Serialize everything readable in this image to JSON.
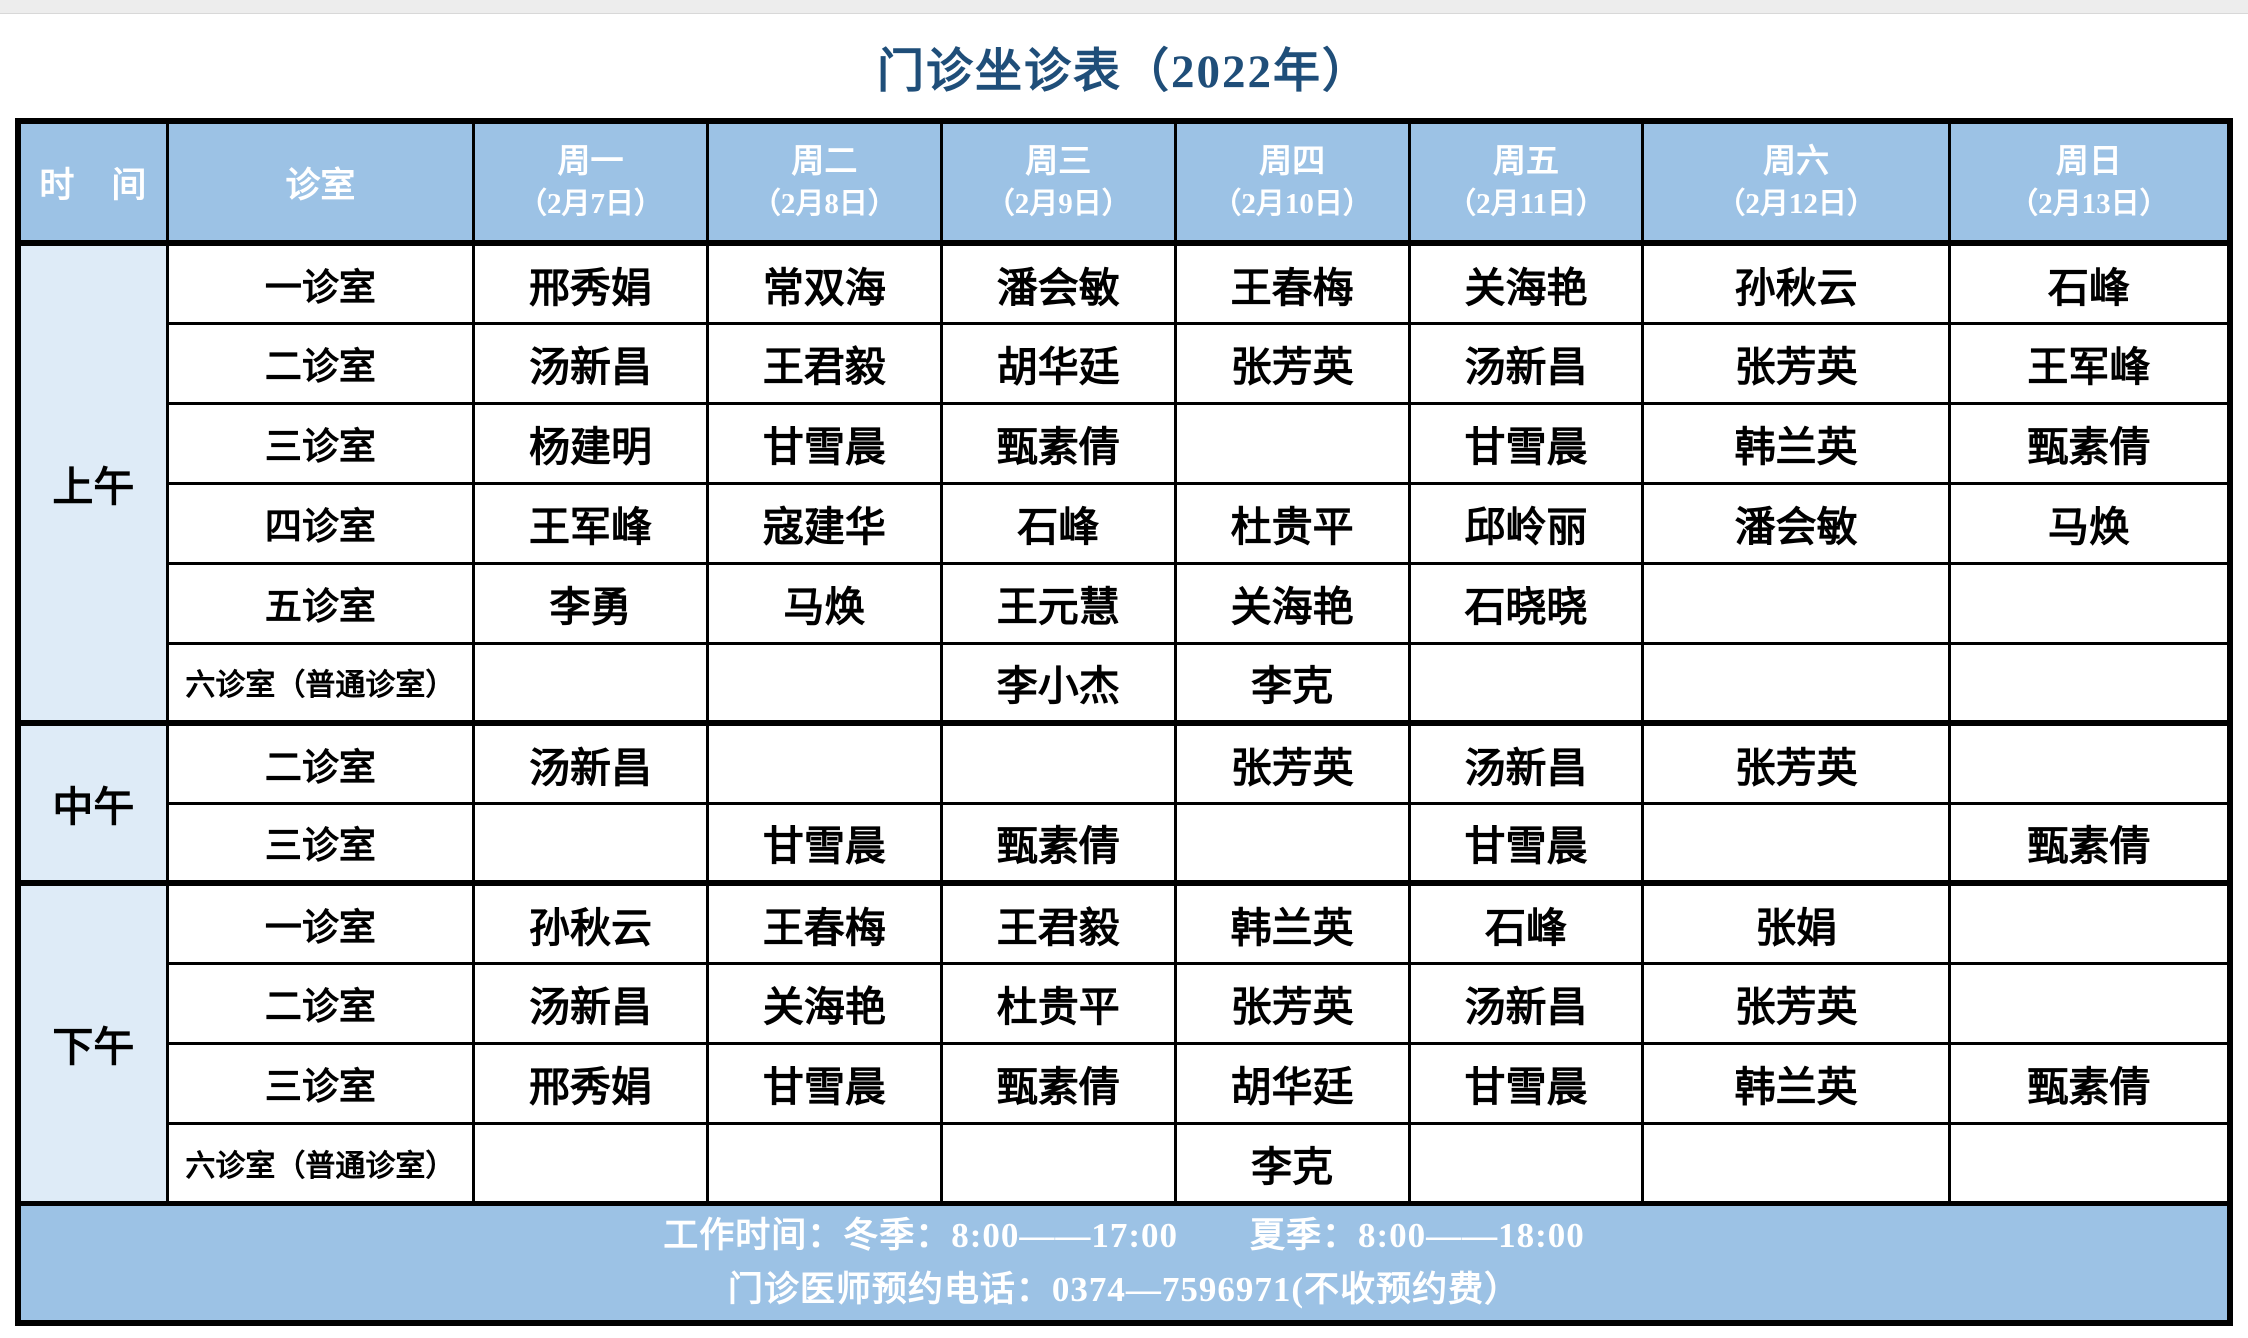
{
  "title": "门诊坐诊表（2022年）",
  "header": {
    "time": "时　间",
    "room": "诊室",
    "days": [
      {
        "day": "周一",
        "date": "（2月7日）"
      },
      {
        "day": "周二",
        "date": "（2月8日）"
      },
      {
        "day": "周三",
        "date": "（2月9日）"
      },
      {
        "day": "周四",
        "date": "（2月10日）"
      },
      {
        "day": "周五",
        "date": "（2月11日）"
      },
      {
        "day": "周六",
        "date": "（2月12日）"
      },
      {
        "day": "周日",
        "date": "（2月13日）"
      }
    ]
  },
  "sections": [
    {
      "label": "上午",
      "rows": [
        {
          "room": "一诊室",
          "small": false,
          "cells": [
            "邢秀娟",
            "常双海",
            "潘会敏",
            "王春梅",
            "关海艳",
            "孙秋云",
            "石峰"
          ]
        },
        {
          "room": "二诊室",
          "small": false,
          "cells": [
            "汤新昌",
            "王君毅",
            "胡华廷",
            "张芳英",
            "汤新昌",
            "张芳英",
            "王军峰"
          ]
        },
        {
          "room": "三诊室",
          "small": false,
          "cells": [
            "杨建明",
            "甘雪晨",
            "甄素倩",
            "",
            "甘雪晨",
            "韩兰英",
            "甄素倩"
          ]
        },
        {
          "room": "四诊室",
          "small": false,
          "cells": [
            "王军峰",
            "寇建华",
            "石峰",
            "杜贵平",
            "邱岭丽",
            "潘会敏",
            "马焕"
          ]
        },
        {
          "room": "五诊室",
          "small": false,
          "cells": [
            "李勇",
            "马焕",
            "王元慧",
            "关海艳",
            "石晓晓",
            "",
            ""
          ]
        },
        {
          "room": "六诊室（普通诊室）",
          "small": true,
          "cells": [
            "",
            "",
            "李小杰",
            "李克",
            "",
            "",
            ""
          ]
        }
      ]
    },
    {
      "label": "中午",
      "rows": [
        {
          "room": "二诊室",
          "small": false,
          "cells": [
            "汤新昌",
            "",
            "",
            "张芳英",
            "汤新昌",
            "张芳英",
            ""
          ]
        },
        {
          "room": "三诊室",
          "small": false,
          "cells": [
            "",
            "甘雪晨",
            "甄素倩",
            "",
            "甘雪晨",
            "",
            "甄素倩"
          ]
        }
      ]
    },
    {
      "label": "下午",
      "rows": [
        {
          "room": "一诊室",
          "small": false,
          "cells": [
            "孙秋云",
            "王春梅",
            "王君毅",
            "韩兰英",
            "石峰",
            "张娟",
            ""
          ]
        },
        {
          "room": "二诊室",
          "small": false,
          "cells": [
            "汤新昌",
            "关海艳",
            "杜贵平",
            "张芳英",
            "汤新昌",
            "张芳英",
            ""
          ]
        },
        {
          "room": "三诊室",
          "small": false,
          "cells": [
            "邢秀娟",
            "甘雪晨",
            "甄素倩",
            "胡华廷",
            "甘雪晨",
            "韩兰英",
            "甄素倩"
          ]
        },
        {
          "room": "六诊室（普通诊室）",
          "small": true,
          "cells": [
            "",
            "",
            "",
            "李克",
            "",
            "",
            ""
          ]
        }
      ]
    }
  ],
  "footer": {
    "line1": "工作时间：冬季：8:00——17:00　　夏季：8:00——18:00",
    "line2": "门诊医师预约电话：0374—7596971(不收预约费）"
  },
  "colors": {
    "header_blue": "#9CC2E5",
    "time_col_blue": "#DEEBF7",
    "title_navy": "#1F4E79",
    "border_black": "#000000"
  }
}
